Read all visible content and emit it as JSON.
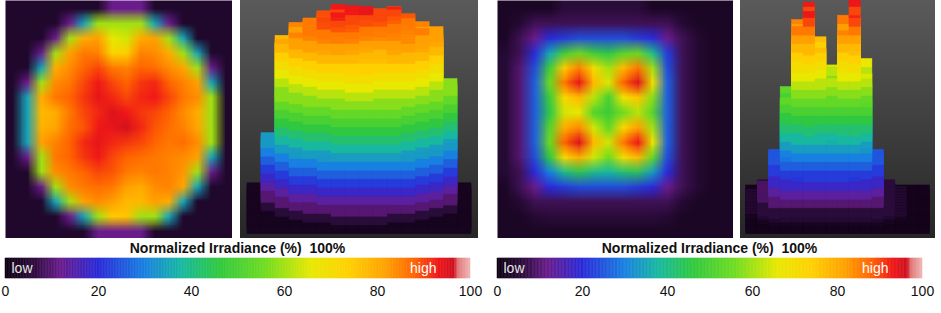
{
  "chart_data": [
    {
      "type": "heatmap",
      "tick_labels": false,
      "cells": [
        [
          4,
          4,
          4,
          4,
          4,
          4,
          4,
          12,
          12,
          12,
          4,
          4,
          4,
          4,
          4,
          4
        ],
        [
          4,
          4,
          4,
          4,
          12,
          35,
          60,
          60,
          60,
          60,
          35,
          12,
          4,
          4,
          4,
          4
        ],
        [
          4,
          4,
          4,
          12,
          60,
          80,
          82,
          66,
          64,
          80,
          82,
          60,
          35,
          4,
          4,
          4
        ],
        [
          4,
          4,
          12,
          60,
          82,
          86,
          85,
          72,
          74,
          85,
          84,
          80,
          60,
          35,
          4,
          4
        ],
        [
          4,
          4,
          35,
          80,
          84,
          88,
          90,
          86,
          85,
          88,
          87,
          84,
          81,
          60,
          12,
          4
        ],
        [
          4,
          12,
          60,
          84,
          86,
          90,
          93,
          90,
          88,
          91,
          92,
          88,
          85,
          82,
          35,
          4
        ],
        [
          4,
          35,
          80,
          86,
          88,
          91,
          94,
          92,
          90,
          92,
          93,
          90,
          86,
          84,
          60,
          4
        ],
        [
          4,
          35,
          78,
          80,
          86,
          90,
          92,
          95,
          93,
          91,
          90,
          88,
          84,
          80,
          60,
          4
        ],
        [
          4,
          35,
          79,
          81,
          87,
          89,
          93,
          94,
          96,
          92,
          89,
          87,
          85,
          81,
          60,
          4
        ],
        [
          4,
          35,
          82,
          85,
          88,
          92,
          94,
          92,
          91,
          90,
          88,
          86,
          87,
          84,
          60,
          4
        ],
        [
          4,
          12,
          60,
          86,
          88,
          91,
          93,
          90,
          88,
          87,
          86,
          85,
          84,
          82,
          35,
          4
        ],
        [
          4,
          4,
          60,
          84,
          86,
          88,
          90,
          89,
          86,
          85,
          86,
          85,
          83,
          60,
          12,
          4
        ],
        [
          4,
          4,
          12,
          60,
          84,
          86,
          87,
          86,
          82,
          80,
          84,
          85,
          81,
          35,
          4,
          4
        ],
        [
          4,
          4,
          4,
          35,
          60,
          82,
          84,
          82,
          78,
          78,
          82,
          80,
          35,
          4,
          4,
          4
        ],
        [
          4,
          4,
          4,
          4,
          12,
          35,
          60,
          75,
          76,
          60,
          60,
          35,
          4,
          4,
          4,
          4
        ],
        [
          4,
          4,
          4,
          4,
          4,
          4,
          12,
          12,
          12,
          12,
          4,
          4,
          4,
          4,
          4,
          4
        ]
      ],
      "colorbar_title": "Normalized Irradiance (%)  100%",
      "colorbar_range": [
        0,
        100
      ],
      "colorbar_ticks": [
        0,
        20,
        40,
        60,
        80,
        100
      ],
      "colorbar_labels": [
        "low",
        "high"
      ]
    },
    {
      "type": "heatmap",
      "tick_labels": false,
      "cells": [
        [
          3,
          3,
          3,
          3,
          6,
          6,
          6,
          6,
          6,
          6,
          3,
          3,
          3,
          3,
          3,
          3
        ],
        [
          3,
          5,
          8,
          8,
          8,
          8,
          8,
          8,
          8,
          8,
          8,
          8,
          5,
          3,
          3,
          3
        ],
        [
          3,
          8,
          12,
          20,
          22,
          24,
          24,
          24,
          24,
          22,
          20,
          12,
          8,
          5,
          3,
          3
        ],
        [
          5,
          8,
          20,
          35,
          48,
          55,
          48,
          45,
          52,
          55,
          40,
          22,
          8,
          5,
          3,
          3
        ],
        [
          5,
          10,
          24,
          48,
          75,
          85,
          70,
          60,
          78,
          86,
          60,
          24,
          8,
          5,
          3,
          3
        ],
        [
          5,
          10,
          26,
          55,
          86,
          94,
          78,
          65,
          88,
          95,
          68,
          26,
          8,
          5,
          3,
          3
        ],
        [
          5,
          10,
          26,
          48,
          72,
          78,
          62,
          50,
          68,
          76,
          58,
          26,
          8,
          5,
          3,
          3
        ],
        [
          5,
          10,
          26,
          45,
          64,
          66,
          52,
          48,
          56,
          62,
          52,
          26,
          8,
          5,
          3,
          3
        ],
        [
          5,
          10,
          26,
          52,
          80,
          84,
          64,
          54,
          72,
          82,
          60,
          26,
          8,
          5,
          3,
          3
        ],
        [
          5,
          10,
          26,
          55,
          88,
          95,
          78,
          64,
          86,
          93,
          66,
          26,
          8,
          5,
          3,
          3
        ],
        [
          5,
          10,
          24,
          46,
          72,
          80,
          64,
          56,
          70,
          78,
          54,
          24,
          8,
          5,
          3,
          3
        ],
        [
          5,
          8,
          20,
          30,
          40,
          45,
          40,
          38,
          42,
          44,
          34,
          20,
          8,
          5,
          3,
          3
        ],
        [
          3,
          8,
          12,
          20,
          22,
          24,
          24,
          24,
          24,
          22,
          20,
          12,
          8,
          5,
          3,
          3
        ],
        [
          3,
          5,
          8,
          8,
          8,
          8,
          8,
          8,
          8,
          8,
          8,
          8,
          5,
          3,
          3,
          3
        ],
        [
          3,
          3,
          5,
          6,
          6,
          6,
          6,
          6,
          6,
          6,
          6,
          5,
          3,
          3,
          3,
          3
        ],
        [
          3,
          3,
          3,
          3,
          3,
          3,
          3,
          3,
          3,
          3,
          3,
          3,
          3,
          3,
          3,
          3
        ]
      ],
      "colorbar_title": "Normalized Irradiance (%)  100%",
      "colorbar_range": [
        0,
        100
      ],
      "colorbar_ticks": [
        0,
        20,
        40,
        60,
        80,
        100
      ],
      "colorbar_labels": [
        "low",
        "high"
      ]
    }
  ]
}
